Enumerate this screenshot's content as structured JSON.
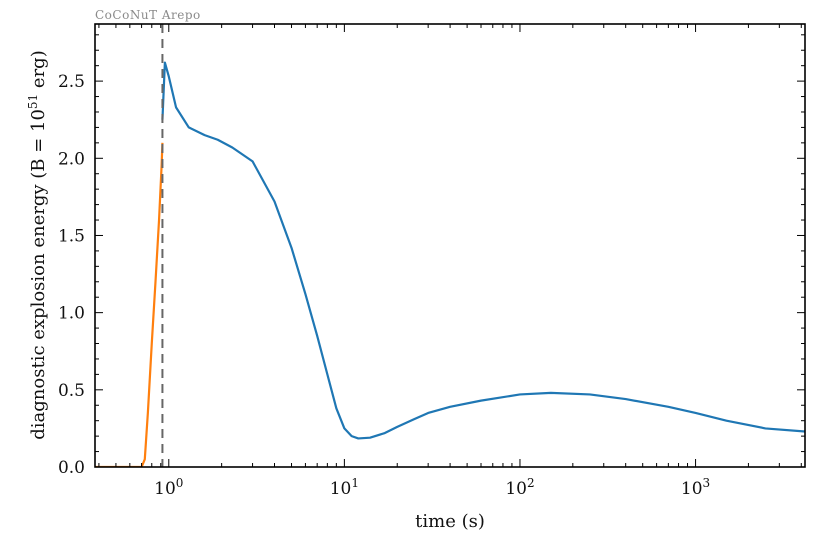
{
  "chart_data": {
    "type": "line",
    "annotation": "CoCoNuT Arepo",
    "xlabel": "time (s)",
    "ylabel_prefix": "diagnostic explosion energy (B = 10",
    "ylabel_sup": "51",
    "ylabel_suffix": " erg)",
    "xscale": "log",
    "xlim": [
      0.38,
      4200
    ],
    "ylim": [
      0.0,
      2.87
    ],
    "x_ticks": [
      {
        "base": "10",
        "exp": "0",
        "value": 1
      },
      {
        "base": "10",
        "exp": "1",
        "value": 10
      },
      {
        "base": "10",
        "exp": "2",
        "value": 100
      },
      {
        "base": "10",
        "exp": "3",
        "value": 1000
      }
    ],
    "y_ticks": [
      {
        "label": "0.0",
        "value": 0.0
      },
      {
        "label": "0.5",
        "value": 0.5
      },
      {
        "label": "1.0",
        "value": 1.0
      },
      {
        "label": "1.5",
        "value": 1.5
      },
      {
        "label": "2.0",
        "value": 2.0
      },
      {
        "label": "2.5",
        "value": 2.5
      }
    ],
    "handoff_time": 0.92,
    "series": [
      {
        "color": "#ff7f0e",
        "x": [
          0.38,
          0.5,
          0.6,
          0.7,
          0.73,
          0.76,
          0.8,
          0.84,
          0.88,
          0.91,
          0.92
        ],
        "y": [
          0.0,
          0.0,
          0.0,
          0.0,
          0.05,
          0.35,
          0.8,
          1.2,
          1.6,
          1.95,
          2.1
        ]
      },
      {
        "color": "#1f77b4",
        "x": [
          0.92,
          0.95,
          1.0,
          1.1,
          1.3,
          1.6,
          1.9,
          2.3,
          3.0,
          4.0,
          5.0,
          6.0,
          7.0,
          8.0,
          9.0,
          10.0,
          11.0,
          12.0,
          14.0,
          17.0,
          20.0,
          25.0,
          30.0,
          40.0,
          60.0,
          100.0,
          150.0,
          250.0,
          400.0,
          700.0,
          1000.0,
          1500.0,
          2500.0,
          4200.0
        ],
        "y": [
          2.25,
          2.62,
          2.53,
          2.33,
          2.2,
          2.15,
          2.12,
          2.07,
          1.98,
          1.72,
          1.42,
          1.12,
          0.85,
          0.6,
          0.38,
          0.25,
          0.2,
          0.185,
          0.19,
          0.22,
          0.26,
          0.31,
          0.35,
          0.39,
          0.43,
          0.47,
          0.48,
          0.47,
          0.44,
          0.39,
          0.35,
          0.3,
          0.25,
          0.23
        ]
      }
    ],
    "grid": false,
    "legend": "none"
  }
}
